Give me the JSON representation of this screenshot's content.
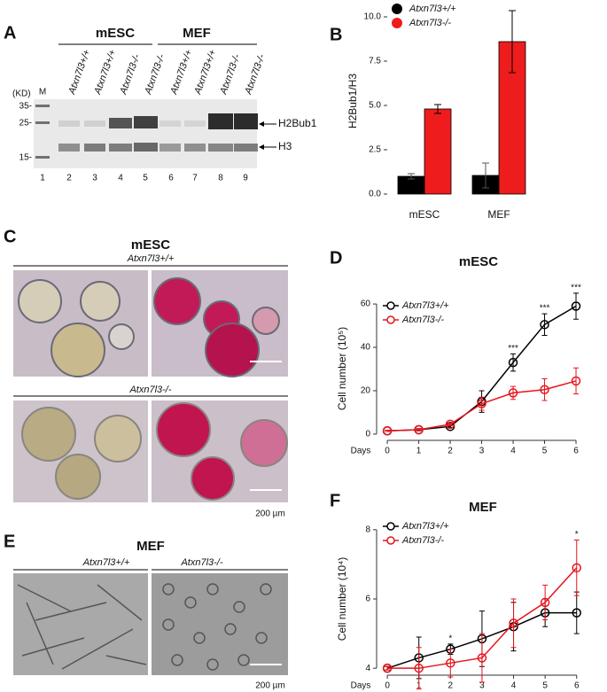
{
  "figure": {
    "panel_a": {
      "letter": "A",
      "groups": [
        "mESC",
        "MEF"
      ],
      "kd_label": "(KD)",
      "marker_label": "M",
      "lanes": [
        "Atxn7l3+/+",
        "Atxn7l3+/+",
        "Atxn7l3-/-",
        "Atxn7l3-/-",
        "Atxn7l3+/+",
        "Atxn7l3+/+",
        "Atxn7l3-/-",
        "Atxn7l3-/-"
      ],
      "size_markers": [
        "35-",
        "25-",
        "15-"
      ],
      "lane_numbers": [
        "1",
        "2",
        "3",
        "4",
        "5",
        "6",
        "7",
        "8",
        "9"
      ],
      "bands": [
        "H2Bub1",
        "H3"
      ]
    },
    "panel_c": {
      "letter": "C",
      "title": "mESC",
      "genotypes": [
        "Atxn7l3+/+",
        "Atxn7l3-/-"
      ],
      "scale": "200 µm"
    },
    "panel_e": {
      "letter": "E",
      "title": "MEF",
      "genotypes": [
        "Atxn7l3+/+",
        "Atxn7l3-/-"
      ],
      "scale": "200 µm"
    }
  },
  "chart_data": [
    {
      "type": "bar",
      "letter": "B",
      "y_label": "H2Bub1/H3",
      "categories": [
        "mESC",
        "MEF"
      ],
      "series": [
        {
          "name": "Atxn7l3+/+",
          "color": "#000000",
          "values": [
            1.0,
            1.05
          ],
          "errors": [
            0.15,
            0.7
          ]
        },
        {
          "name": "Atxn7l3-/-",
          "color": "#ee1c1c",
          "values": [
            4.8,
            8.6
          ],
          "errors": [
            0.25,
            1.75
          ]
        }
      ],
      "ylim": [
        -0.3,
        10.8
      ],
      "yticks": [
        {
          "value": 0,
          "label": "0.0"
        },
        2.5,
        {
          "value": 5,
          "label": "5.0"
        },
        7.5,
        {
          "value": 10,
          "label": "10.0"
        }
      ]
    },
    {
      "type": "line",
      "letter": "D",
      "title": "mESC",
      "y_label": "Cell number (10⁵)",
      "x_label": "Days",
      "x": [
        0,
        1,
        2,
        3,
        4,
        5,
        6
      ],
      "series": [
        {
          "name": "Atxn7l3+/+",
          "color": "#000000",
          "values": [
            1.5,
            2,
            3.5,
            15,
            33,
            50.5,
            59
          ],
          "errors": [
            0.3,
            0.5,
            0.5,
            5,
            4,
            5,
            6
          ]
        },
        {
          "name": "Atxn7l3-/-",
          "color": "#e8141c",
          "values": [
            1.5,
            2,
            4.5,
            14,
            19,
            20.5,
            24.5
          ],
          "errors": [
            0.3,
            0.5,
            0.5,
            3,
            3,
            5,
            6
          ]
        }
      ],
      "xlim": [
        -0.34,
        6.14
      ],
      "xticks": [
        0,
        1,
        2,
        3,
        4,
        5,
        6
      ],
      "ylim": [
        -2.9,
        63.3
      ],
      "yticks": [
        0,
        20,
        40,
        60
      ],
      "annotations": [
        {
          "x": 4,
          "text": "***"
        },
        {
          "x": 5,
          "text": "***"
        },
        {
          "x": 6,
          "text": "***"
        }
      ]
    },
    {
      "type": "line",
      "letter": "F",
      "title": "MEF",
      "y_label": "Cell number (10⁴)",
      "x_label": "Days",
      "x": [
        0,
        1,
        2,
        3,
        4,
        5,
        6
      ],
      "series": [
        {
          "name": "Atxn7l3+/+",
          "color": "#000000",
          "values": [
            4.0,
            4.3,
            4.55,
            4.85,
            5.2,
            5.6,
            5.6
          ],
          "errors": [
            0.05,
            0.6,
            0.15,
            0.8,
            0.7,
            0.4,
            0.6
          ]
        },
        {
          "name": "Atxn7l3-/-",
          "color": "#e8141c",
          "values": [
            4.0,
            4.0,
            4.15,
            4.3,
            5.3,
            5.9,
            6.9
          ],
          "errors": [
            0.05,
            0.6,
            0.4,
            0.7,
            0.7,
            0.5,
            0.8
          ]
        }
      ],
      "xlim": [
        -0.34,
        6.4
      ],
      "xticks": [
        0,
        1,
        2,
        3,
        4,
        5,
        6
      ],
      "ylim": [
        3.8,
        8.2
      ],
      "yticks": [
        4,
        6,
        8
      ],
      "annotations": [
        {
          "x": 2,
          "text": "*"
        },
        {
          "x": 6,
          "text": "*"
        }
      ]
    }
  ]
}
